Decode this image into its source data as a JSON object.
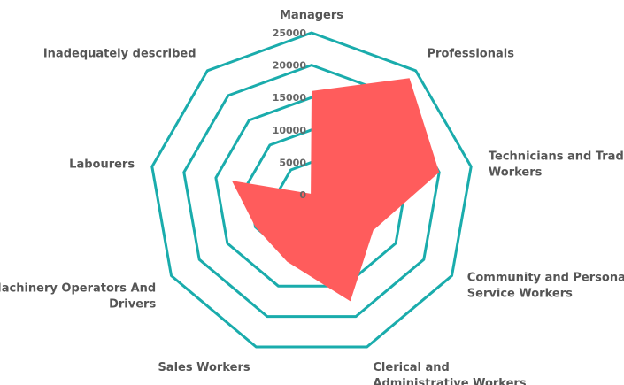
{
  "chart_data": {
    "type": "radar",
    "title": "",
    "categories": [
      [
        "Managers"
      ],
      [
        "Professionals"
      ],
      [
        "Technicians and Trades",
        "Workers"
      ],
      [
        "Community and Personal",
        "Service Workers"
      ],
      [
        "Clerical and",
        "Administrative Workers"
      ],
      [
        "Sales Workers"
      ],
      [
        "Machinery Operators And",
        "Drivers"
      ],
      [
        "Labourers"
      ],
      [
        "Inadequately described"
      ]
    ],
    "series": [
      {
        "values": [
          16000,
          23500,
          20000,
          11000,
          17500,
          11000,
          10000,
          12500,
          200
        ]
      }
    ],
    "rlim": [
      0,
      25000
    ],
    "ticks": [
      0,
      5000,
      10000,
      15000,
      20000,
      25000
    ],
    "tick_labels": [
      "0",
      "5000",
      "10000",
      "15000",
      "20000",
      "25000"
    ],
    "grid": true,
    "legend": "none",
    "colors": {
      "grid": "#1aacac",
      "fill": "#ff5c5c"
    }
  }
}
